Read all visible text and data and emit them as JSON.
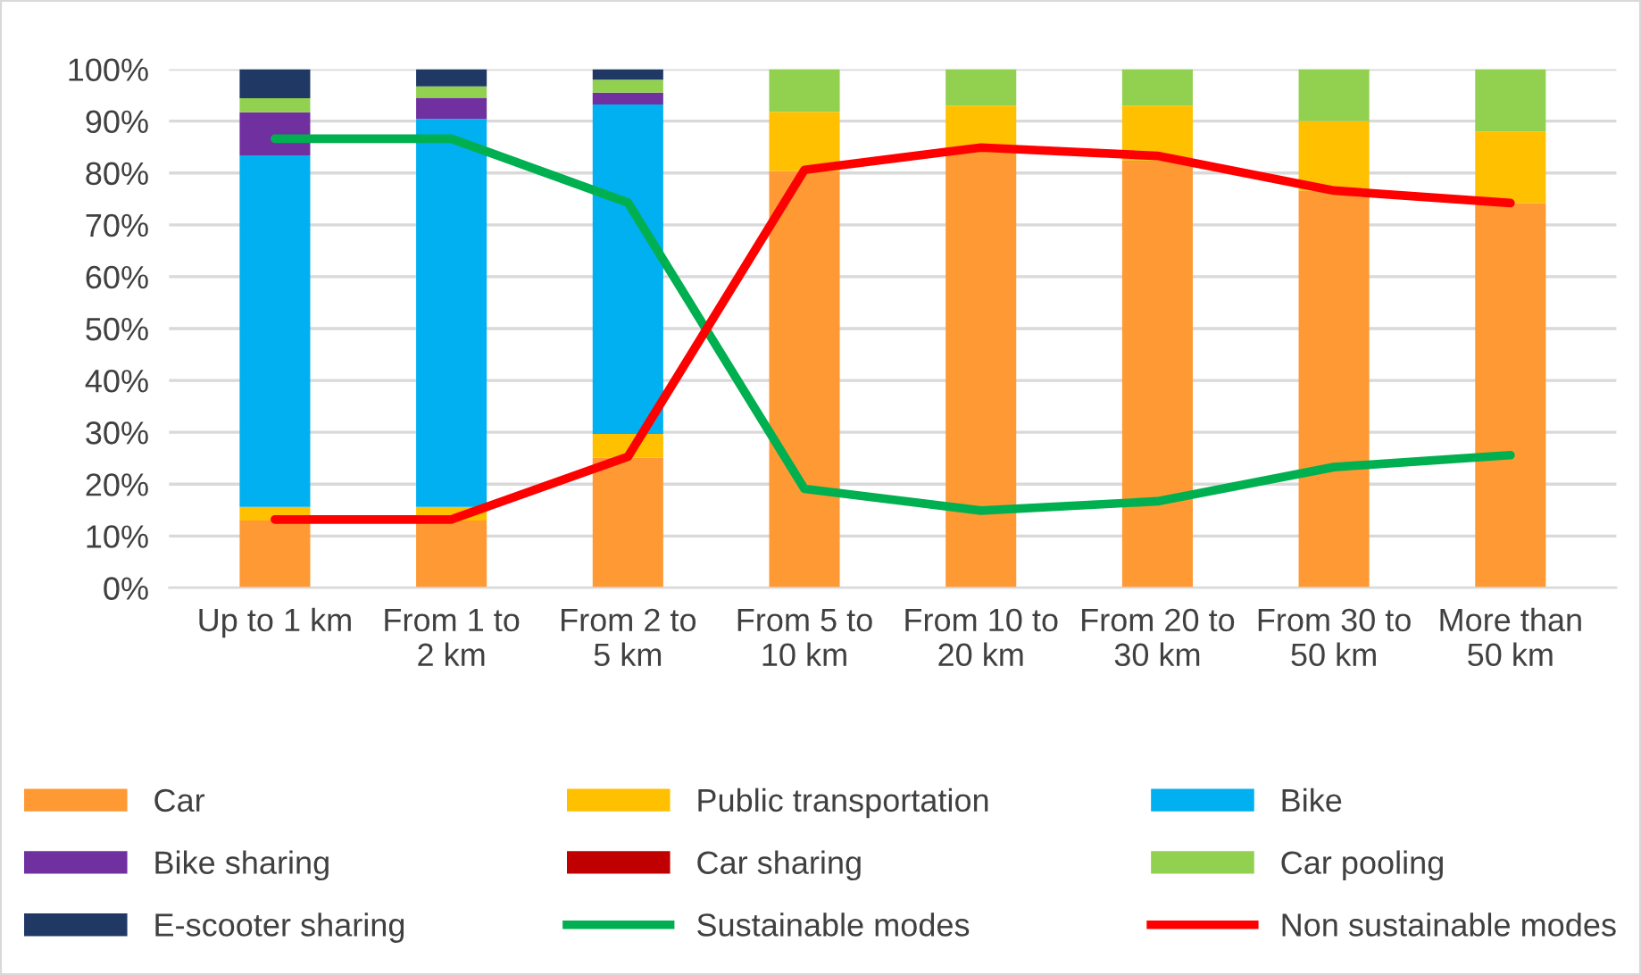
{
  "chart_data": {
    "type": "bar",
    "stacked": true,
    "categories": [
      "Up to 1 km",
      "From 1 to 2 km",
      "From 2 to 5 km",
      "From 5 to 10 km",
      "From 10 to 20 km",
      "From 20 to 30 km",
      "From 30 to 50 km",
      "More than 50 km"
    ],
    "series": [
      {
        "name": "Car",
        "color": "#ff9933",
        "values": [
          13.0,
          13.0,
          25.1,
          80.4,
          84.1,
          82.4,
          76.6,
          74.2
        ]
      },
      {
        "name": "Public transportation",
        "color": "#ffc000",
        "values": [
          2.6,
          2.6,
          4.6,
          11.4,
          8.9,
          10.6,
          13.4,
          13.8
        ]
      },
      {
        "name": "Bike",
        "color": "#00b0f0",
        "values": [
          67.8,
          74.8,
          63.5,
          0,
          0,
          0,
          0,
          0
        ]
      },
      {
        "name": "Bike sharing",
        "color": "#7030a0",
        "values": [
          8.3,
          4.1,
          2.3,
          0,
          0,
          0,
          0,
          0
        ]
      },
      {
        "name": "Car sharing",
        "color": "#c00000",
        "values": [
          0,
          0,
          0,
          0,
          0,
          0,
          0,
          0
        ]
      },
      {
        "name": "Car pooling",
        "color": "#92d050",
        "values": [
          2.7,
          2.2,
          2.5,
          8.2,
          7.0,
          7.0,
          10.0,
          12.0
        ]
      },
      {
        "name": "E-scooter sharing",
        "color": "#203864",
        "values": [
          5.6,
          3.3,
          2.0,
          0,
          0,
          0,
          0,
          0
        ]
      },
      {
        "name": "Sustainable modes",
        "type": "line",
        "color": "#00b050",
        "values": [
          86.6,
          86.6,
          74.3,
          19.1,
          14.9,
          16.7,
          23.3,
          25.6
        ]
      },
      {
        "name": "Non sustainable modes",
        "type": "line",
        "color": "#ff0000",
        "values": [
          13.2,
          13.2,
          25.3,
          80.6,
          84.9,
          83.3,
          76.6,
          74.2
        ]
      }
    ],
    "ylim": [
      0,
      100
    ],
    "yticks": [
      {
        "value": 0,
        "label": "0%"
      },
      {
        "value": 10,
        "label": "10%"
      },
      {
        "value": 20,
        "label": "20%"
      },
      {
        "value": 30,
        "label": "30%"
      },
      {
        "value": 40,
        "label": "40%"
      },
      {
        "value": 50,
        "label": "50%"
      },
      {
        "value": 60,
        "label": "60%"
      },
      {
        "value": 70,
        "label": "70%"
      },
      {
        "value": 80,
        "label": "80%"
      },
      {
        "value": 90,
        "label": "90%"
      },
      {
        "value": 100,
        "label": "100%"
      }
    ],
    "grid": "y",
    "legend": "bottom",
    "line_style": "solid",
    "marker": "none"
  }
}
